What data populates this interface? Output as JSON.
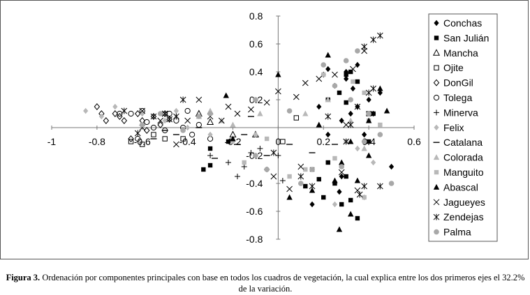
{
  "chart_data": {
    "type": "scatter",
    "title": "",
    "xlabel": "",
    "ylabel": "",
    "xlim": [
      -1,
      0.6
    ],
    "ylim": [
      -0.8,
      0.8
    ],
    "x_ticks": [
      "-1",
      "-0.8",
      "-0.6",
      "-0.4",
      "-0.2",
      "0",
      "0.2",
      "0.4",
      "0.6"
    ],
    "y_ticks": [
      "0.8",
      "0.6",
      "0.4",
      "0.2",
      "-0.2",
      "-0.4",
      "-0.6",
      "-0.8"
    ],
    "x_tick_values": [
      -1,
      -0.8,
      -0.6,
      -0.4,
      -0.2,
      0,
      0.2,
      0.4,
      0.6
    ],
    "y_tick_values": [
      0.8,
      0.6,
      0.4,
      0.2,
      -0.2,
      -0.4,
      -0.6,
      -0.8
    ],
    "grid": false,
    "legend_position": "right",
    "series": [
      {
        "name": "Conchas",
        "marker": "diamond-filled",
        "color": "#000000",
        "points": [
          [
            0.22,
            0.42
          ],
          [
            0.3,
            0.4
          ],
          [
            0.35,
            0.45
          ],
          [
            0.25,
            0.3
          ],
          [
            0.4,
            0.2
          ],
          [
            0.32,
            0.1
          ],
          [
            0.18,
            0.15
          ],
          [
            0.45,
            0.25
          ],
          [
            0.38,
            -0.05
          ],
          [
            0.28,
            0.05
          ],
          [
            0.5,
            -0.28
          ],
          [
            0.42,
            0.1
          ],
          [
            0.3,
            0.35
          ],
          [
            0.35,
            0.15
          ],
          [
            0.15,
            -0.55
          ],
          [
            0.28,
            -0.35
          ],
          [
            0.22,
            -0.05
          ],
          [
            0.27,
            -0.46
          ],
          [
            0.2,
            0.38
          ],
          [
            0.33,
            0.28
          ]
        ]
      },
      {
        "name": "San Julián",
        "marker": "square-filled",
        "color": "#000000",
        "points": [
          [
            0.3,
            0.38
          ],
          [
            0.32,
            0.4
          ],
          [
            0.27,
            0.25
          ],
          [
            0.35,
            0.33
          ],
          [
            0.22,
            0.2
          ],
          [
            0.42,
            0.1
          ],
          [
            0.3,
            0.18
          ],
          [
            0.25,
            -0.4
          ],
          [
            0.2,
            -0.5
          ],
          [
            0.15,
            -0.3
          ],
          [
            0.18,
            -0.37
          ],
          [
            0.32,
            -0.52
          ],
          [
            0.28,
            -0.55
          ],
          [
            0.22,
            -0.25
          ],
          [
            0.4,
            -0.1
          ],
          [
            0.12,
            -0.42
          ],
          [
            0.35,
            -0.65
          ],
          [
            -0.33,
            -0.3
          ],
          [
            -0.3,
            -0.27
          ],
          [
            -0.22,
            -0.1
          ],
          [
            -0.3,
            -0.15
          ],
          [
            0.3,
            -0.35
          ]
        ]
      },
      {
        "name": "Mancha",
        "marker": "triangle-open",
        "color": "#000000",
        "points": [
          [
            -0.3,
            0.04
          ],
          [
            -0.2,
            -0.05
          ],
          [
            -0.35,
            0.1
          ],
          [
            -0.1,
            -0.05
          ]
        ]
      },
      {
        "name": "Ojite",
        "marker": "square-open",
        "color": "#000000",
        "points": [
          [
            -0.6,
            -0.12
          ],
          [
            -0.65,
            -0.1
          ],
          [
            -0.5,
            -0.08
          ],
          [
            -0.55,
            -0.05
          ],
          [
            0.02,
            -0.1
          ],
          [
            0.08,
            0.07
          ],
          [
            0.4,
            0.1
          ],
          [
            -0.42,
            -0.08
          ]
        ]
      },
      {
        "name": "DonGil",
        "marker": "diamond-open",
        "color": "#000000",
        "points": [
          [
            -0.8,
            0.15
          ],
          [
            -0.78,
            0.1
          ],
          [
            -0.76,
            0.05
          ],
          [
            -0.72,
            0.1
          ],
          [
            -0.68,
            0.05
          ],
          [
            -0.65,
            -0.08
          ],
          [
            -0.62,
            0.1
          ],
          [
            -0.6,
            0.05
          ],
          [
            -0.55,
            0.08
          ],
          [
            -0.52,
            0.02
          ],
          [
            -0.5,
            0.1
          ],
          [
            -0.48,
            0.06
          ],
          [
            -0.58,
            -0.02
          ],
          [
            -0.7,
            0.08
          ]
        ]
      },
      {
        "name": "Tolega",
        "marker": "circle-open",
        "color": "#000000",
        "points": [
          [
            -0.65,
            0.1
          ],
          [
            -0.6,
            0.12
          ],
          [
            -0.58,
            0.04
          ],
          [
            -0.55,
            0.0
          ],
          [
            -0.5,
            -0.02
          ],
          [
            -0.45,
            0.05
          ],
          [
            -0.42,
            0.0
          ],
          [
            -0.38,
            -0.05
          ],
          [
            -0.35,
            0.02
          ],
          [
            -0.3,
            -0.08
          ],
          [
            -0.62,
            -0.08
          ],
          [
            -0.7,
            0.1
          ],
          [
            -0.48,
            0.1
          ],
          [
            -0.4,
            0.12
          ]
        ]
      },
      {
        "name": "Minerva",
        "marker": "plus",
        "color": "#000000",
        "points": [
          [
            -0.22,
            -0.25
          ],
          [
            -0.12,
            -0.18
          ],
          [
            -0.05,
            -0.3
          ],
          [
            0.0,
            -0.2
          ],
          [
            -0.15,
            -0.28
          ],
          [
            -0.3,
            -0.2
          ],
          [
            -0.18,
            -0.35
          ],
          [
            -0.08,
            -0.15
          ],
          [
            0.02,
            -0.38
          ]
        ]
      },
      {
        "name": "Felix",
        "marker": "diamond-filled",
        "color": "#b8b8b8",
        "points": [
          [
            -0.85,
            0.12
          ],
          [
            -0.78,
            0.08
          ],
          [
            -0.72,
            0.15
          ],
          [
            -0.6,
            0.1
          ],
          [
            -0.5,
            0.05
          ],
          [
            -0.4,
            0.0
          ],
          [
            -0.3,
            -0.05
          ],
          [
            -0.2,
            -0.1
          ],
          [
            -0.1,
            -0.05
          ],
          [
            0.25,
            -0.55
          ],
          [
            0.35,
            -0.15
          ],
          [
            0.42,
            -0.25
          ],
          [
            0.38,
            -0.5
          ],
          [
            -0.45,
            0.12
          ]
        ]
      },
      {
        "name": "Catalana",
        "marker": "dash",
        "color": "#000000",
        "points": [
          [
            -0.55,
            -0.08
          ],
          [
            -0.5,
            -0.02
          ],
          [
            -0.45,
            -0.05
          ],
          [
            -0.35,
            0.0
          ],
          [
            -0.28,
            -0.22
          ],
          [
            -0.18,
            -0.12
          ],
          [
            -0.05,
            -0.2
          ],
          [
            -0.15,
            -0.05
          ],
          [
            -0.12,
            0.08
          ],
          [
            0.05,
            -0.12
          ],
          [
            0.25,
            -0.12
          ],
          [
            0.15,
            -0.18
          ]
        ]
      },
      {
        "name": "Colorada",
        "marker": "triangle-filled",
        "color": "#b8b8b8",
        "points": [
          [
            -0.45,
            0.08
          ],
          [
            -0.35,
            0.08
          ],
          [
            -0.25,
            0.05
          ],
          [
            -0.2,
            0.02
          ],
          [
            0.32,
            0.05
          ],
          [
            0.38,
            -0.15
          ],
          [
            0.12,
            0.1
          ],
          [
            0.22,
            0.2
          ],
          [
            -0.08,
            0.1
          ],
          [
            -0.3,
            0.12
          ]
        ]
      },
      {
        "name": "Manguito",
        "marker": "square-filled",
        "color": "#b8b8b8",
        "points": [
          [
            0.2,
            0.38
          ],
          [
            0.33,
            0.33
          ],
          [
            0.38,
            0.25
          ],
          [
            0.4,
            0.05
          ],
          [
            0.3,
            -0.1
          ],
          [
            0.25,
            -0.22
          ],
          [
            0.12,
            -0.3
          ],
          [
            0.05,
            -0.35
          ],
          [
            -0.15,
            -0.25
          ],
          [
            0.38,
            -0.5
          ],
          [
            0.45,
            0.02
          ],
          [
            -0.05,
            -0.08
          ]
        ]
      },
      {
        "name": "Abascal",
        "marker": "triangle-filled",
        "color": "#000000",
        "points": [
          [
            0.22,
            0.52
          ],
          [
            0.0,
            0.38
          ],
          [
            -0.23,
            0.23
          ],
          [
            0.45,
            0.28
          ],
          [
            0.48,
            0.12
          ],
          [
            0.4,
            0.05
          ],
          [
            0.32,
            -0.1
          ],
          [
            0.28,
            -0.25
          ],
          [
            0.35,
            -0.38
          ],
          [
            0.25,
            -0.38
          ],
          [
            0.15,
            -0.45
          ],
          [
            0.32,
            -0.62
          ],
          [
            0.27,
            -0.73
          ],
          [
            0.05,
            -0.5
          ],
          [
            0.4,
            -0.2
          ],
          [
            0.18,
            0.02
          ],
          [
            -0.2,
            -0.08
          ]
        ]
      },
      {
        "name": "Jagueyes",
        "marker": "cross",
        "color": "#000000",
        "points": [
          [
            -0.6,
            0.0
          ],
          [
            -0.52,
            0.05
          ],
          [
            -0.45,
            -0.12
          ],
          [
            -0.4,
            0.05
          ],
          [
            -0.35,
            0.2
          ],
          [
            -0.3,
            0.08
          ],
          [
            -0.25,
            0.05
          ],
          [
            -0.18,
            0.1
          ],
          [
            -0.12,
            0.13
          ],
          [
            0.0,
            0.26
          ],
          [
            0.08,
            0.22
          ],
          [
            0.12,
            0.32
          ],
          [
            0.18,
            0.35
          ],
          [
            0.25,
            0.38
          ],
          [
            0.33,
            0.42
          ],
          [
            0.38,
            0.55
          ],
          [
            0.35,
            -0.45
          ],
          [
            0.28,
            -0.32
          ],
          [
            0.1,
            -0.28
          ],
          [
            0.05,
            -0.44
          ],
          [
            -0.02,
            -0.35
          ],
          [
            -0.05,
            0.18
          ],
          [
            0.3,
            0.02
          ],
          [
            -0.6,
            0.12
          ],
          [
            -0.5,
            0.1
          ],
          [
            -0.22,
            0.15
          ]
        ]
      },
      {
        "name": "Zendejas",
        "marker": "asterisk",
        "color": "#000000",
        "points": [
          [
            0.45,
            0.66
          ],
          [
            0.42,
            0.63
          ],
          [
            0.38,
            0.58
          ],
          [
            0.35,
            0.15
          ],
          [
            0.32,
            0.02
          ],
          [
            0.42,
            0.28
          ],
          [
            -0.5,
            0.1
          ],
          [
            -0.48,
            0.06
          ],
          [
            -0.55,
            0.08
          ],
          [
            -0.62,
            -0.04
          ],
          [
            -0.68,
            0.12
          ],
          [
            0.22,
            0.08
          ],
          [
            0.38,
            -0.42
          ],
          [
            0.3,
            -0.1
          ],
          [
            0.15,
            -0.42
          ],
          [
            0.1,
            -0.35
          ],
          [
            0.36,
            -0.48
          ],
          [
            0.45,
            -0.42
          ],
          [
            -0.02,
            -0.18
          ],
          [
            -0.42,
            0.2
          ],
          [
            0.4,
            0.25
          ],
          [
            -0.45,
            0.08
          ]
        ]
      },
      {
        "name": "Palma",
        "marker": "circle-filled",
        "color": "#a8a8a8",
        "points": [
          [
            0.2,
            0.45
          ],
          [
            0.3,
            0.48
          ],
          [
            0.35,
            0.55
          ],
          [
            0.25,
            0.3
          ],
          [
            0.32,
            0.2
          ],
          [
            0.4,
            0.1
          ],
          [
            0.45,
            -0.05
          ],
          [
            0.38,
            -0.1
          ],
          [
            0.28,
            -0.28
          ],
          [
            0.5,
            -0.4
          ],
          [
            0.15,
            -0.3
          ],
          [
            0.1,
            -0.4
          ],
          [
            -0.1,
            -0.2
          ],
          [
            -0.05,
            -0.3
          ],
          [
            -0.3,
            0.1
          ],
          [
            -0.52,
            0.1
          ],
          [
            -0.42,
            -0.02
          ],
          [
            -0.35,
            0.08
          ],
          [
            -0.6,
            0.02
          ],
          [
            -0.1,
            0.2
          ],
          [
            0.05,
            0.12
          ]
        ]
      }
    ]
  },
  "caption": {
    "label": "Figura 3.",
    "text": "Ordenación por componentes principales con base en todos los cuadros de vegetación, la cual explica entre los dos primeros ejes el 32.2% de la variación."
  }
}
